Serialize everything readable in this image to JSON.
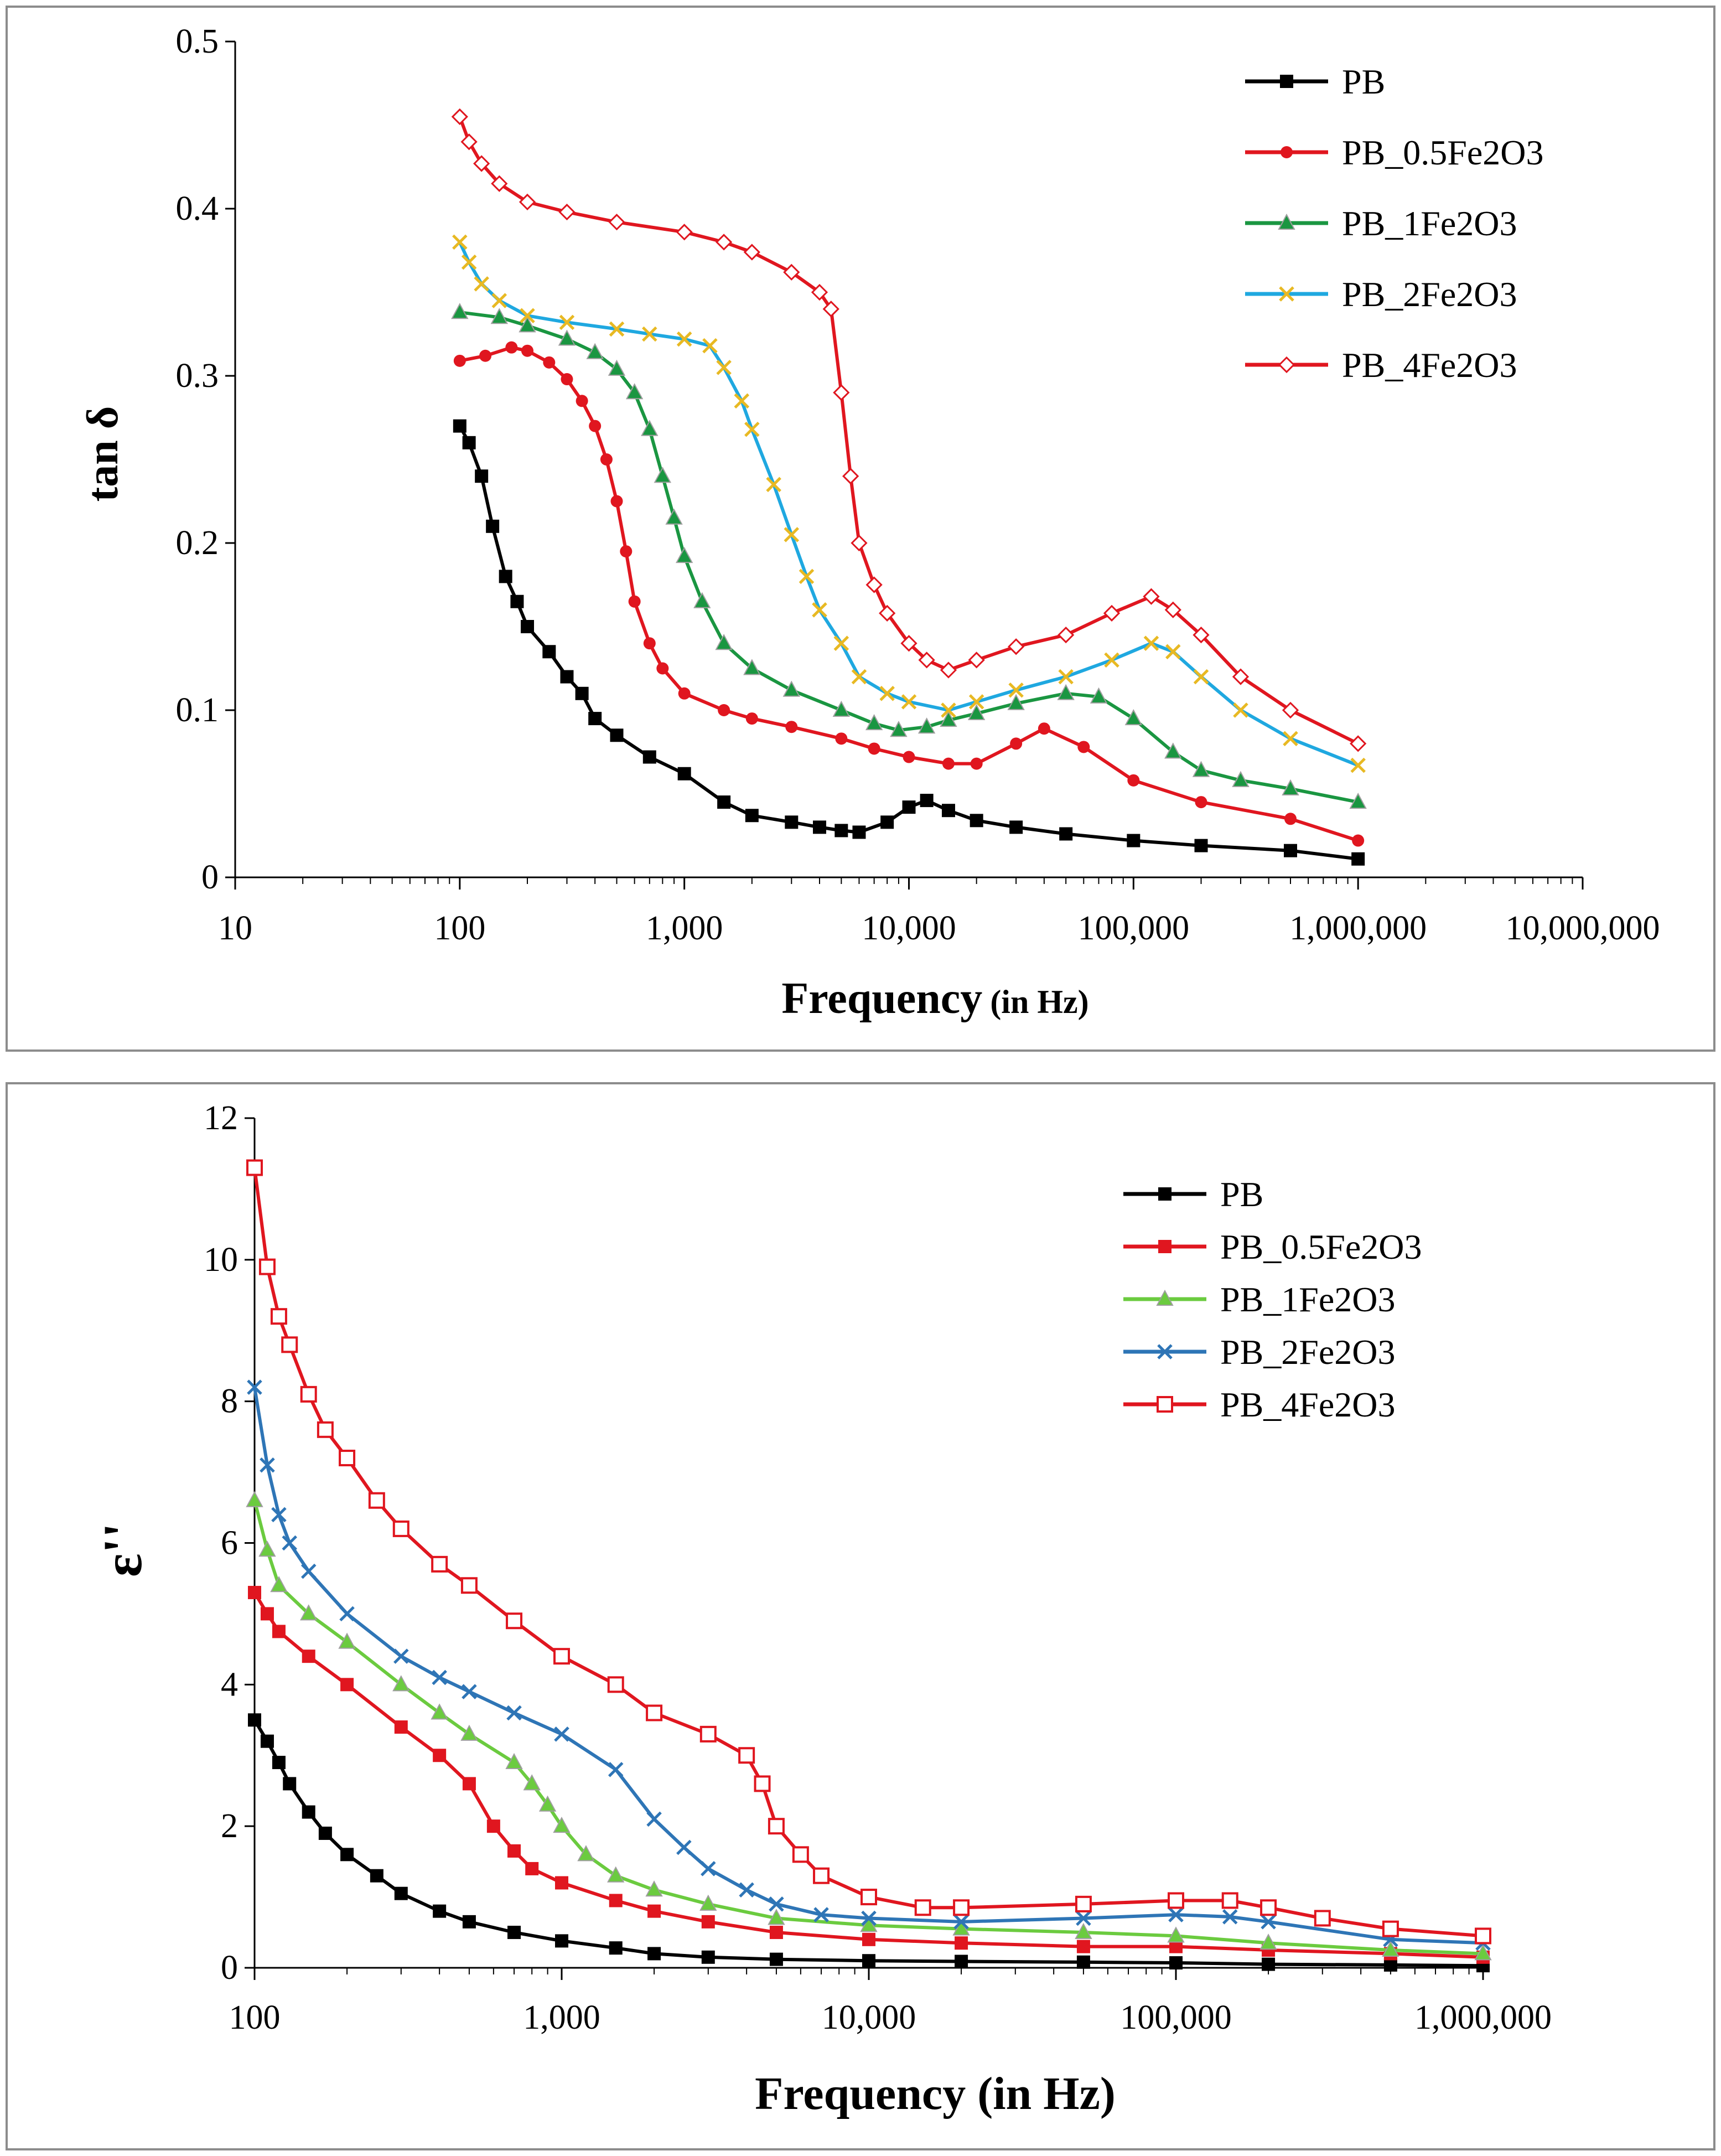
{
  "chart_data": [
    {
      "type": "line",
      "xscale": "log",
      "xlim": [
        10,
        10000000
      ],
      "ylim": [
        0,
        0.5
      ],
      "x_ticks": [
        "10",
        "100",
        "1,000",
        "10,000",
        "100,000",
        "1,000,000",
        "10,000,000"
      ],
      "y_ticks": [
        "0",
        "0.1",
        "0.2",
        "0.3",
        "0.4",
        "0.5"
      ],
      "xlabel": "Frequency",
      "xlabel_unit": "(in Hz)",
      "ylabel": "tan δ",
      "grid": false,
      "legend_position": "top-right",
      "series": [
        {
          "name": "PB",
          "color": "#000000",
          "marker": "square",
          "x": [
            100,
            110,
            125,
            140,
            160,
            180,
            200,
            250,
            300,
            350,
            400,
            500,
            700,
            1000,
            1500,
            2000,
            3000,
            4000,
            5000,
            6000,
            8000,
            10000,
            12000,
            15000,
            20000,
            30000,
            50000,
            100000,
            200000,
            500000,
            1000000
          ],
          "y": [
            0.27,
            0.26,
            0.24,
            0.21,
            0.18,
            0.165,
            0.15,
            0.135,
            0.12,
            0.11,
            0.095,
            0.085,
            0.072,
            0.062,
            0.045,
            0.037,
            0.033,
            0.03,
            0.028,
            0.027,
            0.033,
            0.042,
            0.046,
            0.04,
            0.034,
            0.03,
            0.026,
            0.022,
            0.019,
            0.016,
            0.011
          ]
        },
        {
          "name": "PB_0.5Fe2O3",
          "color": "#E0161F",
          "marker": "circle",
          "x": [
            100,
            130,
            170,
            200,
            250,
            300,
            350,
            400,
            450,
            500,
            550,
            600,
            700,
            800,
            1000,
            1500,
            2000,
            3000,
            5000,
            7000,
            10000,
            15000,
            20000,
            30000,
            40000,
            60000,
            100000,
            200000,
            500000,
            1000000
          ],
          "y": [
            0.309,
            0.312,
            0.317,
            0.315,
            0.308,
            0.298,
            0.285,
            0.27,
            0.25,
            0.225,
            0.195,
            0.165,
            0.14,
            0.125,
            0.11,
            0.1,
            0.095,
            0.09,
            0.083,
            0.077,
            0.072,
            0.068,
            0.068,
            0.08,
            0.089,
            0.078,
            0.058,
            0.045,
            0.035,
            0.022
          ]
        },
        {
          "name": "PB_1Fe2O3",
          "color": "#1A9641",
          "marker": "triangle",
          "x": [
            100,
            150,
            200,
            300,
            400,
            500,
            600,
            700,
            800,
            900,
            1000,
            1200,
            1500,
            2000,
            3000,
            5000,
            7000,
            9000,
            12000,
            15000,
            20000,
            30000,
            50000,
            70000,
            100000,
            150000,
            200000,
            300000,
            500000,
            1000000
          ],
          "y": [
            0.338,
            0.335,
            0.33,
            0.322,
            0.314,
            0.304,
            0.29,
            0.268,
            0.24,
            0.215,
            0.192,
            0.165,
            0.14,
            0.125,
            0.112,
            0.1,
            0.092,
            0.088,
            0.09,
            0.094,
            0.098,
            0.104,
            0.11,
            0.108,
            0.095,
            0.075,
            0.064,
            0.058,
            0.053,
            0.045
          ]
        },
        {
          "name": "PB_2Fe2O3",
          "color": "#1FA8E0",
          "marker": "x",
          "marker_color": "#E8B923",
          "x": [
            100,
            110,
            125,
            150,
            200,
            300,
            500,
            700,
            1000,
            1300,
            1500,
            1800,
            2000,
            2500,
            3000,
            3500,
            4000,
            5000,
            6000,
            8000,
            10000,
            15000,
            20000,
            30000,
            50000,
            80000,
            120000,
            150000,
            200000,
            300000,
            500000,
            1000000
          ],
          "y": [
            0.38,
            0.368,
            0.355,
            0.345,
            0.336,
            0.332,
            0.328,
            0.325,
            0.322,
            0.318,
            0.305,
            0.285,
            0.268,
            0.235,
            0.205,
            0.18,
            0.16,
            0.14,
            0.12,
            0.11,
            0.105,
            0.1,
            0.105,
            0.112,
            0.12,
            0.13,
            0.14,
            0.135,
            0.12,
            0.1,
            0.083,
            0.067
          ]
        },
        {
          "name": "PB_4Fe2O3",
          "color": "#E0161F",
          "marker": "diamond-open",
          "x": [
            100,
            110,
            125,
            150,
            200,
            300,
            500,
            1000,
            1500,
            2000,
            3000,
            4000,
            4500,
            5000,
            5500,
            6000,
            7000,
            8000,
            10000,
            12000,
            15000,
            20000,
            30000,
            50000,
            80000,
            120000,
            150000,
            200000,
            300000,
            500000,
            1000000
          ],
          "y": [
            0.455,
            0.44,
            0.427,
            0.415,
            0.404,
            0.398,
            0.392,
            0.386,
            0.38,
            0.374,
            0.362,
            0.35,
            0.34,
            0.29,
            0.24,
            0.2,
            0.175,
            0.158,
            0.14,
            0.13,
            0.124,
            0.13,
            0.138,
            0.145,
            0.158,
            0.168,
            0.16,
            0.145,
            0.12,
            0.1,
            0.08
          ]
        }
      ]
    },
    {
      "type": "line",
      "xscale": "log",
      "xlim": [
        100,
        1000000
      ],
      "ylim": [
        0,
        12
      ],
      "x_ticks": [
        "100",
        "1,000",
        "10,000",
        "100,000",
        "1,000,000"
      ],
      "y_ticks": [
        "0",
        "2",
        "4",
        "6",
        "8",
        "10",
        "12"
      ],
      "xlabel": "Frequency (in Hz)",
      "ylabel": "ε''",
      "grid": false,
      "legend_position": "top-right",
      "series": [
        {
          "name": "PB",
          "color": "#000000",
          "marker": "square",
          "x": [
            100,
            110,
            120,
            130,
            150,
            170,
            200,
            250,
            300,
            400,
            500,
            700,
            1000,
            1500,
            2000,
            3000,
            5000,
            10000,
            20000,
            50000,
            100000,
            200000,
            500000,
            1000000
          ],
          "y": [
            3.5,
            3.2,
            2.9,
            2.6,
            2.2,
            1.9,
            1.6,
            1.3,
            1.05,
            0.8,
            0.65,
            0.5,
            0.38,
            0.28,
            0.2,
            0.15,
            0.12,
            0.1,
            0.09,
            0.08,
            0.07,
            0.05,
            0.04,
            0.03
          ]
        },
        {
          "name": "PB_0.5Fe2O3",
          "color": "#E0161F",
          "marker": "filled-square",
          "x": [
            100,
            110,
            120,
            150,
            200,
            300,
            400,
            500,
            600,
            700,
            800,
            1000,
            1500,
            2000,
            3000,
            5000,
            10000,
            20000,
            50000,
            100000,
            200000,
            500000,
            1000000
          ],
          "y": [
            5.3,
            5.0,
            4.75,
            4.4,
            4.0,
            3.4,
            3.0,
            2.6,
            2.0,
            1.65,
            1.4,
            1.2,
            0.95,
            0.8,
            0.65,
            0.5,
            0.4,
            0.35,
            0.3,
            0.3,
            0.25,
            0.2,
            0.15
          ]
        },
        {
          "name": "PB_1Fe2O3",
          "color": "#6BCB3F",
          "marker": "triangle",
          "x": [
            100,
            110,
            120,
            150,
            200,
            300,
            400,
            500,
            700,
            800,
            900,
            1000,
            1200,
            1500,
            2000,
            3000,
            5000,
            10000,
            20000,
            50000,
            100000,
            200000,
            500000,
            1000000
          ],
          "y": [
            6.6,
            5.9,
            5.4,
            5.0,
            4.6,
            4.0,
            3.6,
            3.3,
            2.9,
            2.6,
            2.3,
            2.0,
            1.6,
            1.3,
            1.1,
            0.9,
            0.7,
            0.6,
            0.55,
            0.5,
            0.45,
            0.35,
            0.25,
            0.2
          ]
        },
        {
          "name": "PB_2Fe2O3",
          "color": "#2E75B6",
          "marker": "x",
          "x": [
            100,
            110,
            120,
            130,
            150,
            200,
            300,
            400,
            500,
            700,
            1000,
            1500,
            2000,
            2500,
            3000,
            4000,
            5000,
            7000,
            10000,
            20000,
            50000,
            100000,
            150000,
            200000,
            500000,
            1000000
          ],
          "y": [
            8.2,
            7.1,
            6.4,
            6.0,
            5.6,
            5.0,
            4.4,
            4.1,
            3.9,
            3.6,
            3.3,
            2.8,
            2.1,
            1.7,
            1.4,
            1.1,
            0.9,
            0.75,
            0.7,
            0.65,
            0.7,
            0.75,
            0.72,
            0.65,
            0.4,
            0.35
          ]
        },
        {
          "name": "PB_4Fe2O3",
          "color": "#E0161F",
          "marker": "open-square",
          "x": [
            100,
            110,
            120,
            130,
            150,
            170,
            200,
            250,
            300,
            400,
            500,
            700,
            1000,
            1500,
            2000,
            3000,
            4000,
            4500,
            5000,
            6000,
            7000,
            10000,
            15000,
            20000,
            50000,
            100000,
            150000,
            200000,
            300000,
            500000,
            1000000
          ],
          "y": [
            11.3,
            9.9,
            9.2,
            8.8,
            8.1,
            7.6,
            7.2,
            6.6,
            6.2,
            5.7,
            5.4,
            4.9,
            4.4,
            4.0,
            3.6,
            3.3,
            3.0,
            2.6,
            2.0,
            1.6,
            1.3,
            1.0,
            0.85,
            0.85,
            0.9,
            0.95,
            0.95,
            0.85,
            0.7,
            0.55,
            0.45
          ]
        }
      ]
    }
  ]
}
